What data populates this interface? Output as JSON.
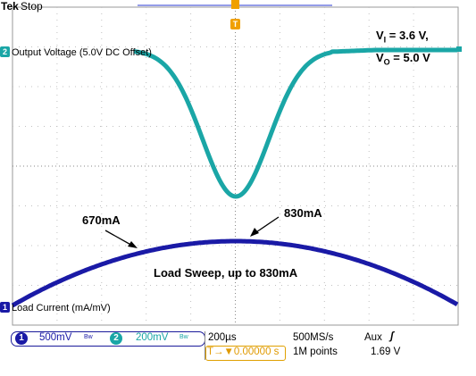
{
  "scope": {
    "brand": "Tek",
    "acq_state": "Stop",
    "trigger_marker": "T",
    "ch2_label": "Output Voltage (5.0V DC Offset)",
    "ch1_label": "Load Current (mA/mV)",
    "ch2_marker": "2",
    "ch1_marker": "1"
  },
  "annotations": {
    "vi_line": "V",
    "vi_sub": "I",
    "vi_value": " = 3.6 V,",
    "vo_line": "V",
    "vo_sub": "O",
    "vo_value": " = 5.0 V",
    "left_current": "670mA",
    "right_current": "830mA",
    "sweep": "Load Sweep, up to 830mA"
  },
  "status": {
    "ch1_num": "1",
    "ch1_scale": "500mV",
    "ch1_bw": "Bw",
    "ch2_num": "2",
    "ch2_scale": "200mV",
    "ch2_bw": "Bw",
    "timebase": "200µs",
    "sample_rate": "500MS/s",
    "trigger_source": "Aux",
    "trigger_slope": "ʃ",
    "trigger_pos": "T→▼0.00000 s",
    "record_length": "1M points",
    "trigger_level": "1.69 V"
  },
  "colors": {
    "ch2_trace": "#1aa6a6",
    "ch1_trace": "#1a1aa6",
    "trigger": "#f0a000",
    "grid": "#c0c0c0"
  }
}
